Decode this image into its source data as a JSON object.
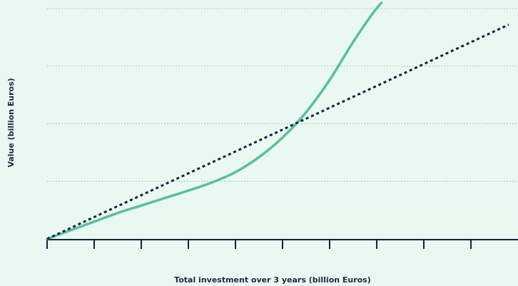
{
  "chart_data": {
    "type": "line",
    "title": "",
    "xlabel": "Total investment over 3 years (billion Euros)",
    "ylabel": "Value (billion Euros)",
    "xlim": [
      0,
      10
    ],
    "ylim": [
      0,
      4
    ],
    "x_ticks": [
      0,
      1,
      2,
      3,
      4,
      5,
      6,
      7,
      8,
      9,
      10
    ],
    "y_gridlines": [
      1,
      2,
      3,
      4
    ],
    "grid": true,
    "series": [
      {
        "style": "solid",
        "color": "#5bbf9c",
        "points": [
          [
            0,
            0
          ],
          [
            0.5,
            0.15
          ],
          [
            1,
            0.3
          ],
          [
            1.5,
            0.45
          ],
          [
            2,
            0.58
          ],
          [
            2.5,
            0.71
          ],
          [
            3,
            0.84
          ],
          [
            3.5,
            0.98
          ],
          [
            4,
            1.16
          ],
          [
            4.5,
            1.42
          ],
          [
            5,
            1.76
          ],
          [
            5.5,
            2.2
          ],
          [
            6,
            2.76
          ],
          [
            6.5,
            3.42
          ],
          [
            6.9,
            3.9
          ],
          [
            7.1,
            4.1
          ]
        ]
      },
      {
        "style": "dotted",
        "color": "#12233f",
        "points": [
          [
            0,
            0
          ],
          [
            9.8,
            3.72
          ]
        ]
      }
    ]
  }
}
